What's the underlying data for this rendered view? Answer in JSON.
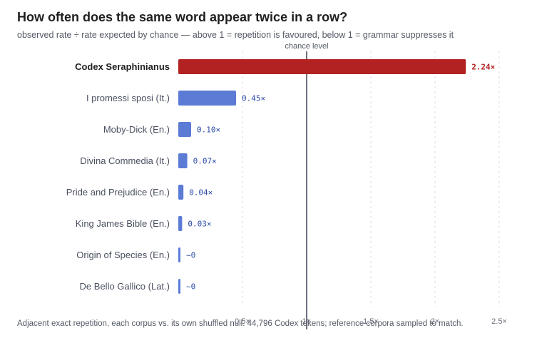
{
  "title": "How often does the same word appear twice in a row?",
  "subtitle": "observed rate ÷ rate expected by chance — above 1 = repetition is favoured, below 1 = grammar suppresses it",
  "footnote": "Adjacent exact repetition, each corpus vs. its own shuffled null. 44,796 Codex tokens; reference corpora sampled to match.",
  "colors": {
    "highlight": "#b22222",
    "bar": "#5b7bd5",
    "highlight_label": "#b22222",
    "bar_label": "#2b4aa8",
    "reference_line": "#3a4255",
    "grid": "#d9dce3"
  },
  "chart_data": {
    "type": "bar",
    "orientation": "horizontal",
    "categories": [
      "Codex Seraphinianus",
      "I promessi sposi (It.)",
      "Moby-Dick (En.)",
      "Divina Commedia (It.)",
      "Pride and Prejudice (En.)",
      "King James Bible (En.)",
      "Origin of Species (En.)",
      "De Bello Gallico (Lat.)"
    ],
    "values": [
      2.24,
      0.45,
      0.1,
      0.07,
      0.04,
      0.03,
      0,
      0
    ],
    "value_labels": [
      "2.24×",
      "0.45×",
      "0.10×",
      "0.07×",
      "0.04×",
      "0.03×",
      "~0",
      "~0"
    ],
    "highlight_category": "Codex Seraphinianus",
    "xlim": [
      0,
      2.5
    ],
    "xticks": [
      0.5,
      1,
      1.5,
      2,
      2.5
    ],
    "xtick_labels": [
      "0.5×",
      "1×",
      "1.5×",
      "2×",
      "2.5×"
    ],
    "reference_line": {
      "value": 1,
      "label": "chance level"
    },
    "grid": "vertical dashed"
  }
}
